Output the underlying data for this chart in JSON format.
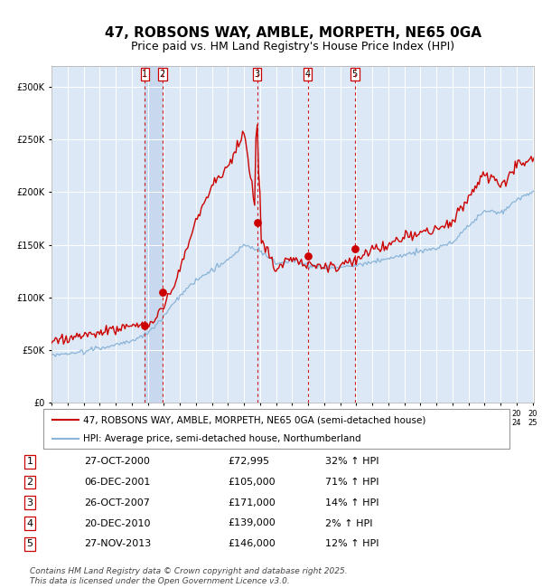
{
  "title": "47, ROBSONS WAY, AMBLE, MORPETH, NE65 0GA",
  "subtitle": "Price paid vs. HM Land Registry's House Price Index (HPI)",
  "background_color": "#ffffff",
  "plot_bg_color": "#dce8f5",
  "grid_color": "#ffffff",
  "hpi_line_color": "#8ab4d8",
  "price_line_color": "#cc0000",
  "sale_marker_color": "#cc0000",
  "dashed_line_color": "#cc0000",
  "highlight_bg_color": "#c8d8ee",
  "ylim": [
    0,
    320000
  ],
  "yticks": [
    0,
    50000,
    100000,
    150000,
    200000,
    250000,
    300000
  ],
  "ytick_labels": [
    "£0",
    "£50K",
    "£100K",
    "£150K",
    "£200K",
    "£250K",
    "£300K"
  ],
  "year_start": 1995,
  "year_end": 2025,
  "sales": [
    {
      "num": 1,
      "date": "27-OCT-2000",
      "year": 2000.82,
      "price": 72995,
      "pct": "32%",
      "dir": "↑"
    },
    {
      "num": 2,
      "date": "06-DEC-2001",
      "year": 2001.92,
      "price": 105000,
      "pct": "71%",
      "dir": "↑"
    },
    {
      "num": 3,
      "date": "26-OCT-2007",
      "year": 2007.82,
      "price": 171000,
      "pct": "14%",
      "dir": "↑"
    },
    {
      "num": 4,
      "date": "20-DEC-2010",
      "year": 2010.97,
      "price": 139000,
      "pct": "2%",
      "dir": "↑"
    },
    {
      "num": 5,
      "date": "27-NOV-2013",
      "year": 2013.91,
      "price": 146000,
      "pct": "12%",
      "dir": "↑"
    }
  ],
  "legend_entries": [
    "47, ROBSONS WAY, AMBLE, MORPETH, NE65 0GA (semi-detached house)",
    "HPI: Average price, semi-detached house, Northumberland"
  ],
  "footer": "Contains HM Land Registry data © Crown copyright and database right 2025.\nThis data is licensed under the Open Government Licence v3.0.",
  "title_fontsize": 11,
  "subtitle_fontsize": 9,
  "tick_fontsize": 7,
  "legend_fontsize": 7.5,
  "footer_fontsize": 6.5
}
